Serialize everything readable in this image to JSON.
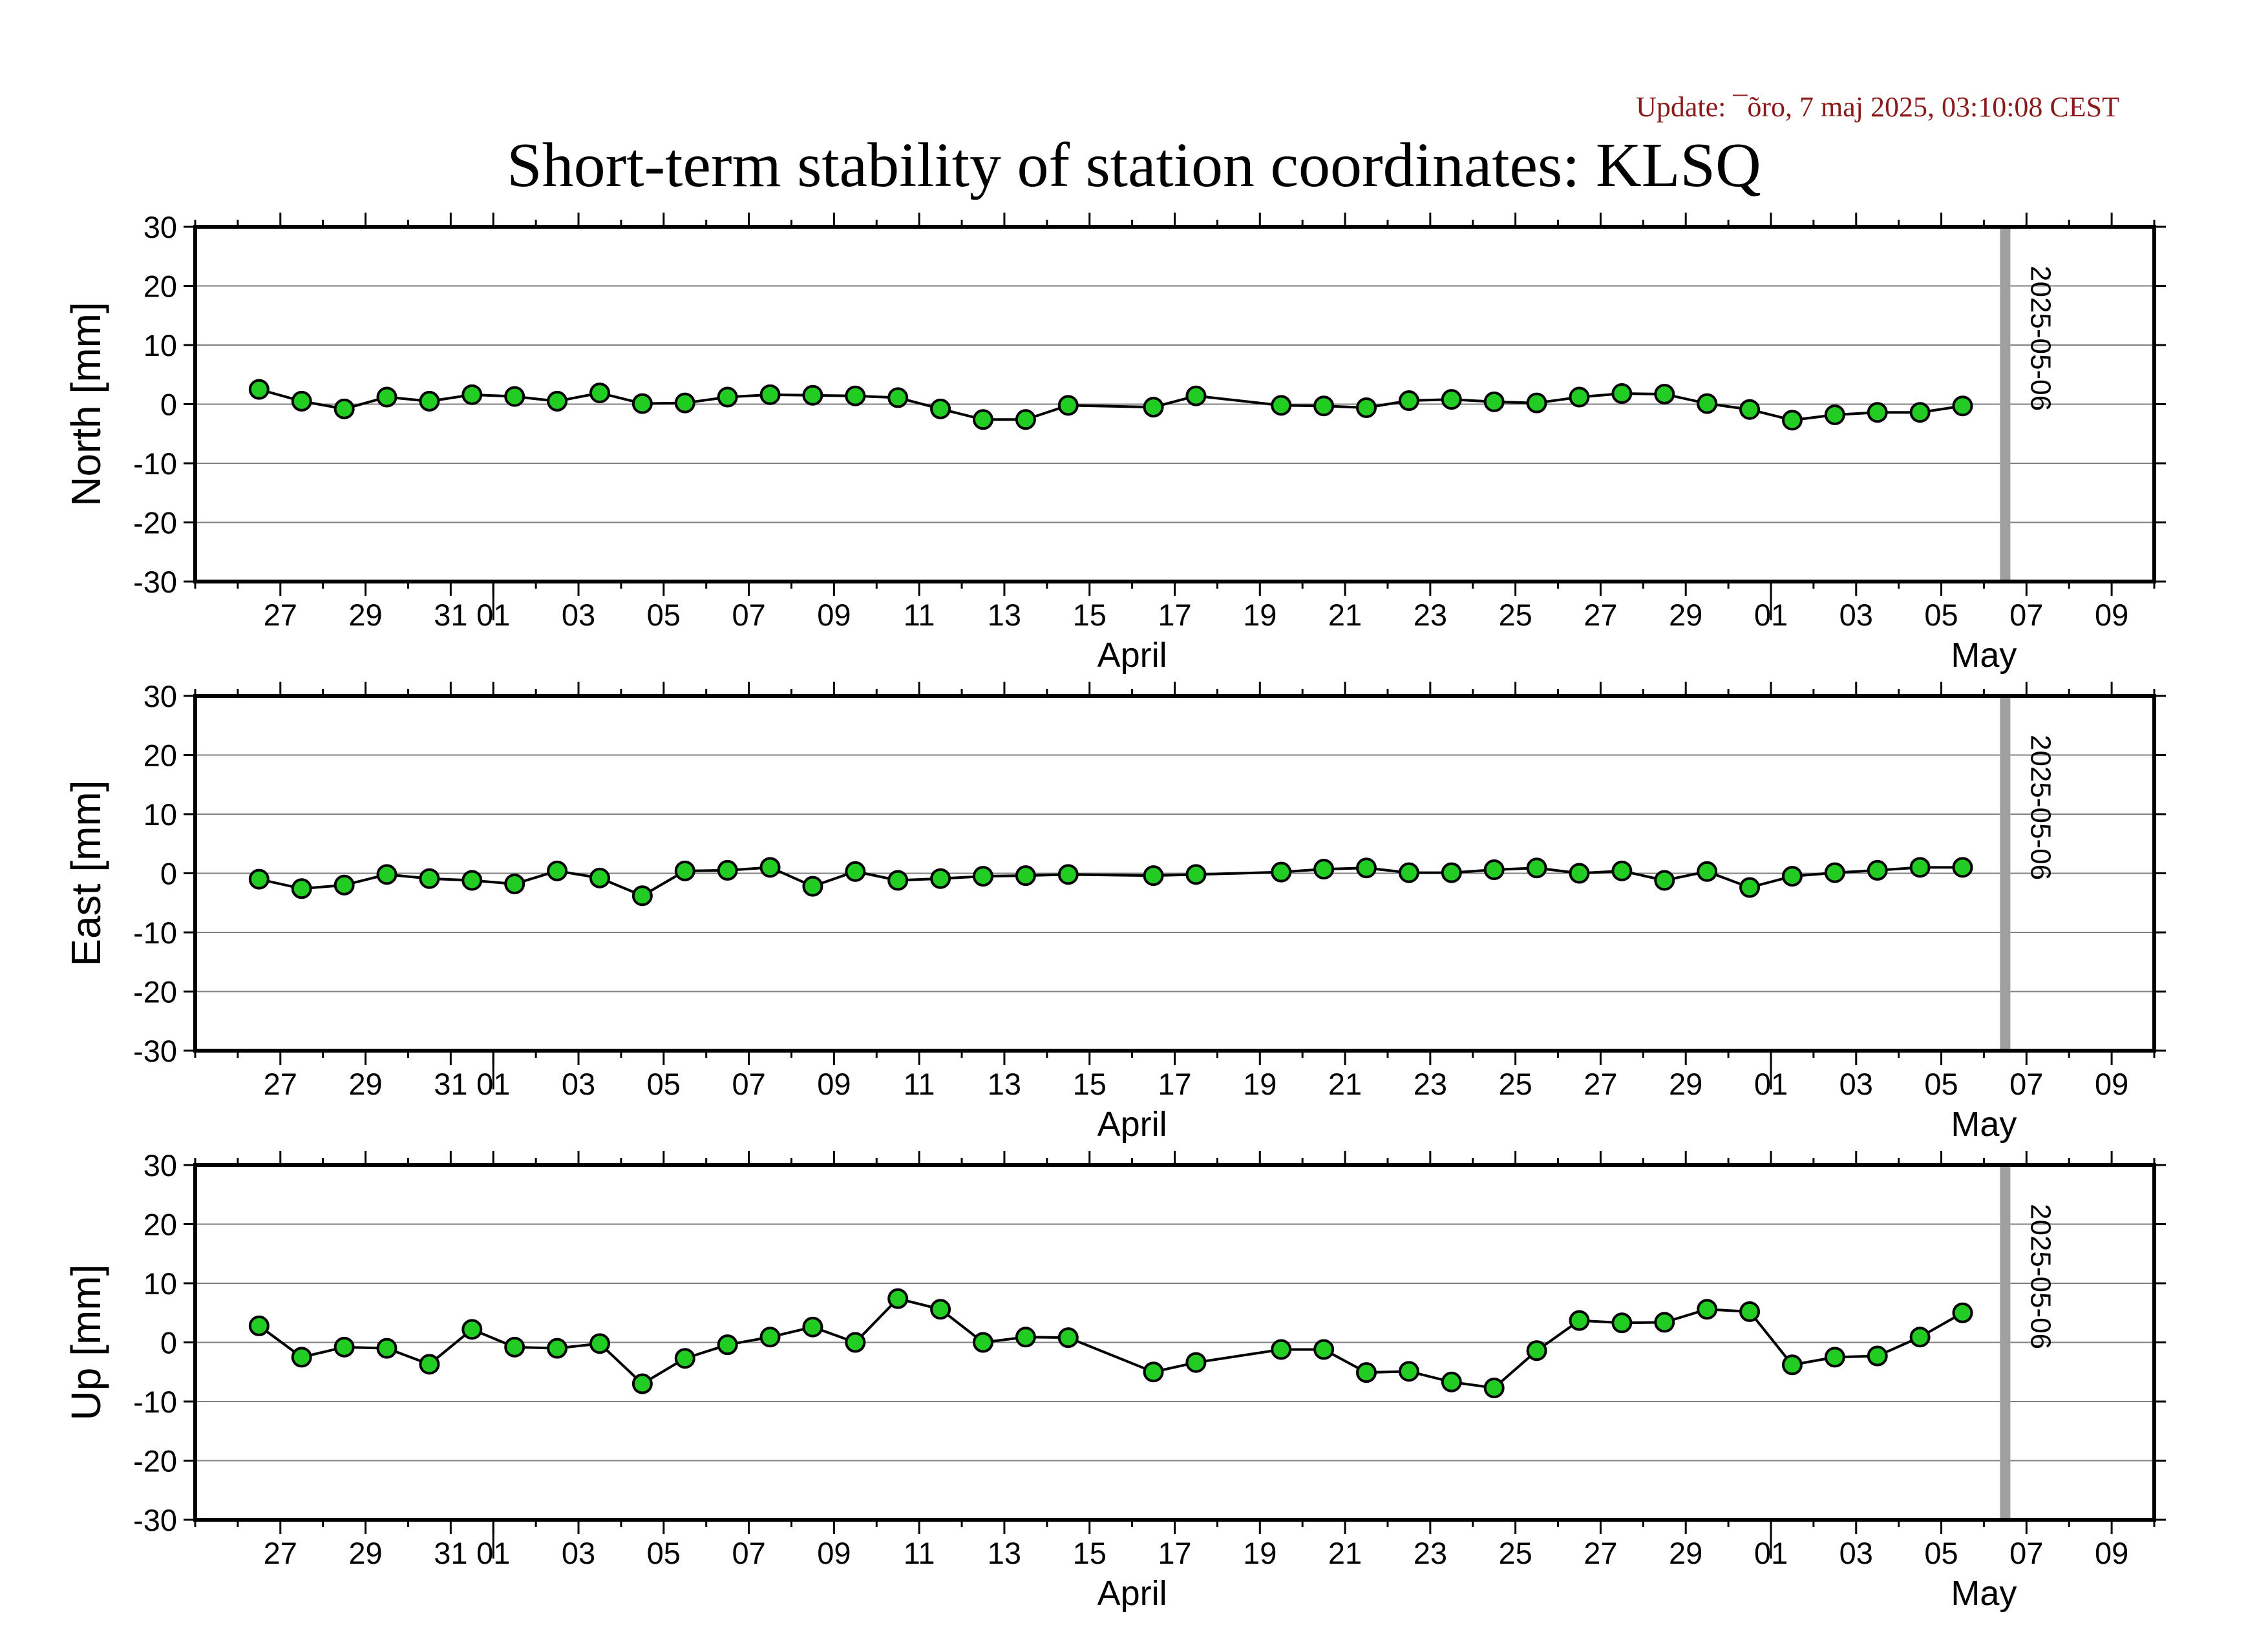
{
  "header": {
    "update": "Update: ¯õro, 7 maj 2025, 03:10:08 CEST",
    "title": "Short-term stability of station coordinates: KLSQ"
  },
  "colors": {
    "point_fill": "#22cc22",
    "marker_line": "#a0a0a0",
    "grid": "#808080",
    "update_text": "#8b1a1a"
  },
  "chart_data": [
    {
      "type": "line",
      "ylabel": "North [mm]",
      "ylim": [
        -30,
        30
      ],
      "yticks": [
        30,
        20,
        10,
        0,
        -10,
        -20,
        -30
      ],
      "xlim": [
        "2025-03-25",
        "2025-05-10"
      ],
      "grid": true,
      "x_tick_labels": [
        "27",
        "29",
        "31",
        "01",
        "03",
        "05",
        "07",
        "09",
        "11",
        "13",
        "15",
        "17",
        "19",
        "21",
        "23",
        "25",
        "27",
        "29",
        "01",
        "03",
        "05",
        "07",
        "09"
      ],
      "x_month_labels": [
        "April",
        "May"
      ],
      "marker_date": "2025-05-06",
      "marker_label": "2025-05-06",
      "series": [
        {
          "x": [
            "2025-03-26",
            "2025-03-27",
            "2025-03-28",
            "2025-03-29",
            "2025-03-30",
            "2025-03-31",
            "2025-04-01",
            "2025-04-02",
            "2025-04-03",
            "2025-04-04",
            "2025-04-05",
            "2025-04-06",
            "2025-04-07",
            "2025-04-08",
            "2025-04-09",
            "2025-04-10",
            "2025-04-11",
            "2025-04-12",
            "2025-04-13",
            "2025-04-14",
            "2025-04-16",
            "2025-04-17",
            "2025-04-19",
            "2025-04-20",
            "2025-04-21",
            "2025-04-22",
            "2025-04-23",
            "2025-04-24",
            "2025-04-25",
            "2025-04-26",
            "2025-04-27",
            "2025-04-28",
            "2025-04-29",
            "2025-04-30",
            "2025-05-01",
            "2025-05-02",
            "2025-05-03",
            "2025-05-04",
            "2025-05-05"
          ],
          "y": [
            2.5,
            0.5,
            -0.8,
            1.2,
            0.5,
            1.6,
            1.3,
            0.5,
            1.9,
            0.1,
            0.2,
            1.2,
            1.6,
            1.5,
            1.4,
            1.1,
            -0.8,
            -2.6,
            -2.6,
            -0.2,
            -0.5,
            1.4,
            -0.2,
            -0.3,
            -0.6,
            0.6,
            0.8,
            0.4,
            0.2,
            1.2,
            1.8,
            1.7,
            0.1,
            -0.9,
            -2.7,
            -1.8,
            -1.4,
            -1.4,
            -0.3
          ]
        }
      ]
    },
    {
      "type": "line",
      "ylabel": "East [mm]",
      "ylim": [
        -30,
        30
      ],
      "yticks": [
        30,
        20,
        10,
        0,
        -10,
        -20,
        -30
      ],
      "xlim": [
        "2025-03-25",
        "2025-05-10"
      ],
      "grid": true,
      "x_tick_labels": [
        "27",
        "29",
        "31",
        "01",
        "03",
        "05",
        "07",
        "09",
        "11",
        "13",
        "15",
        "17",
        "19",
        "21",
        "23",
        "25",
        "27",
        "29",
        "01",
        "03",
        "05",
        "07",
        "09"
      ],
      "x_month_labels": [
        "April",
        "May"
      ],
      "marker_date": "2025-05-06",
      "marker_label": "2025-05-06",
      "series": [
        {
          "x": [
            "2025-03-26",
            "2025-03-27",
            "2025-03-28",
            "2025-03-29",
            "2025-03-30",
            "2025-03-31",
            "2025-04-01",
            "2025-04-02",
            "2025-04-03",
            "2025-04-04",
            "2025-04-05",
            "2025-04-06",
            "2025-04-07",
            "2025-04-08",
            "2025-04-09",
            "2025-04-10",
            "2025-04-11",
            "2025-04-12",
            "2025-04-13",
            "2025-04-14",
            "2025-04-16",
            "2025-04-17",
            "2025-04-19",
            "2025-04-20",
            "2025-04-21",
            "2025-04-22",
            "2025-04-23",
            "2025-04-24",
            "2025-04-25",
            "2025-04-26",
            "2025-04-27",
            "2025-04-28",
            "2025-04-29",
            "2025-04-30",
            "2025-05-01",
            "2025-05-02",
            "2025-05-03",
            "2025-05-04",
            "2025-05-05"
          ],
          "y": [
            -1.0,
            -2.6,
            -2.0,
            -0.2,
            -0.9,
            -1.2,
            -1.8,
            0.4,
            -0.8,
            -3.8,
            0.4,
            0.5,
            1.0,
            -2.2,
            0.3,
            -1.2,
            -0.9,
            -0.5,
            -0.4,
            -0.2,
            -0.4,
            -0.2,
            0.2,
            0.7,
            0.9,
            0.1,
            0.1,
            0.6,
            0.9,
            0.0,
            0.4,
            -1.2,
            0.3,
            -2.4,
            -0.5,
            0.1,
            0.5,
            1.0,
            1.0
          ]
        }
      ]
    },
    {
      "type": "line",
      "ylabel": "Up [mm]",
      "ylim": [
        -30,
        30
      ],
      "yticks": [
        30,
        20,
        10,
        0,
        -10,
        -20,
        -30
      ],
      "xlim": [
        "2025-03-25",
        "2025-05-10"
      ],
      "grid": true,
      "x_tick_labels": [
        "27",
        "29",
        "31",
        "01",
        "03",
        "05",
        "07",
        "09",
        "11",
        "13",
        "15",
        "17",
        "19",
        "21",
        "23",
        "25",
        "27",
        "29",
        "01",
        "03",
        "05",
        "07",
        "09"
      ],
      "x_month_labels": [
        "April",
        "May"
      ],
      "marker_date": "2025-05-06",
      "marker_label": "2025-05-06",
      "series": [
        {
          "x": [
            "2025-03-26",
            "2025-03-27",
            "2025-03-28",
            "2025-03-29",
            "2025-03-30",
            "2025-03-31",
            "2025-04-01",
            "2025-04-02",
            "2025-04-03",
            "2025-04-04",
            "2025-04-05",
            "2025-04-06",
            "2025-04-07",
            "2025-04-08",
            "2025-04-09",
            "2025-04-10",
            "2025-04-11",
            "2025-04-12",
            "2025-04-13",
            "2025-04-14",
            "2025-04-16",
            "2025-04-17",
            "2025-04-19",
            "2025-04-20",
            "2025-04-21",
            "2025-04-22",
            "2025-04-23",
            "2025-04-24",
            "2025-04-25",
            "2025-04-26",
            "2025-04-27",
            "2025-04-28",
            "2025-04-29",
            "2025-04-30",
            "2025-05-01",
            "2025-05-02",
            "2025-05-03",
            "2025-05-04",
            "2025-05-05"
          ],
          "y": [
            2.8,
            -2.5,
            -0.8,
            -1.0,
            -3.7,
            2.2,
            -0.8,
            -1.0,
            -0.2,
            -7.0,
            -2.7,
            -0.4,
            0.9,
            2.6,
            0.0,
            7.4,
            5.6,
            0.0,
            0.9,
            0.8,
            -5.0,
            -3.4,
            -1.2,
            -1.2,
            -5.1,
            -4.9,
            -6.7,
            -7.7,
            -1.4,
            3.7,
            3.3,
            3.4,
            5.6,
            5.2,
            -3.8,
            -2.5,
            -2.3,
            0.9,
            5.0
          ]
        }
      ]
    }
  ]
}
